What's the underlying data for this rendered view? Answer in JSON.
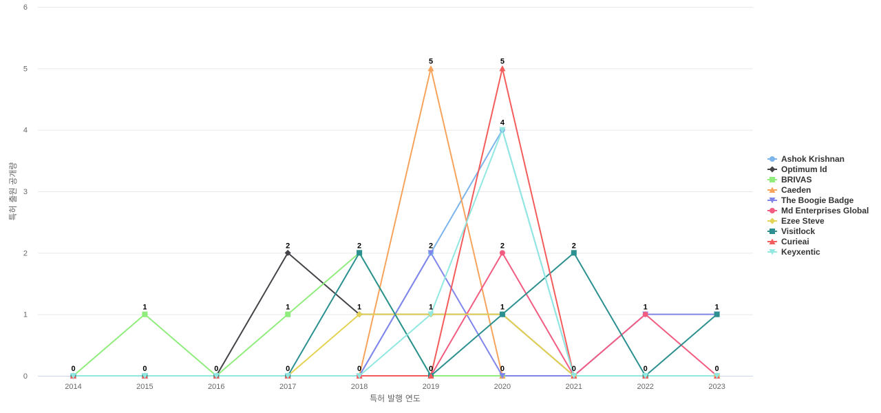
{
  "chart_data": {
    "type": "line",
    "title": "",
    "xlabel": "특허 발행 연도",
    "ylabel": "특허 출원 공개량",
    "ylim": [
      0,
      6
    ],
    "yticks": [
      0,
      1,
      2,
      3,
      4,
      5,
      6
    ],
    "grid": true,
    "legend_position": "right",
    "categories": [
      "2014",
      "2015",
      "2016",
      "2017",
      "2018",
      "2019",
      "2020",
      "2021",
      "2022",
      "2023"
    ],
    "series": [
      {
        "name": "Ashok Krishnan",
        "color": "#7cb5ec",
        "marker": "circle",
        "values": [
          0,
          0,
          0,
          0,
          0,
          2,
          4,
          0,
          0,
          0
        ]
      },
      {
        "name": "Optimum Id",
        "color": "#434348",
        "marker": "diamond",
        "values": [
          0,
          0,
          0,
          2,
          1,
          1,
          1,
          0,
          0,
          0
        ]
      },
      {
        "name": "BRIVAS",
        "color": "#90ed7d",
        "marker": "square",
        "values": [
          0,
          1,
          0,
          1,
          2,
          0,
          0,
          0,
          0,
          0
        ]
      },
      {
        "name": "Caeden",
        "color": "#f7a35c",
        "marker": "triangle",
        "values": [
          0,
          0,
          0,
          0,
          0,
          5,
          0,
          0,
          0,
          0
        ]
      },
      {
        "name": "The Boogie Badge",
        "color": "#8085e9",
        "marker": "triangle-down",
        "values": [
          0,
          0,
          0,
          0,
          0,
          2,
          0,
          0,
          1,
          1
        ]
      },
      {
        "name": "Md Enterprises Global",
        "color": "#f15c80",
        "marker": "circle",
        "values": [
          0,
          0,
          0,
          0,
          0,
          0,
          2,
          0,
          1,
          0
        ]
      },
      {
        "name": "Ezee Steve",
        "color": "#e4d354",
        "marker": "diamond",
        "values": [
          0,
          0,
          0,
          0,
          1,
          1,
          1,
          0,
          0,
          0
        ]
      },
      {
        "name": "Visitlock",
        "color": "#2b908f",
        "marker": "square",
        "values": [
          0,
          0,
          0,
          0,
          2,
          0,
          1,
          2,
          0,
          1
        ]
      },
      {
        "name": "Curieai",
        "color": "#f45b5b",
        "marker": "triangle",
        "values": [
          0,
          0,
          0,
          0,
          0,
          0,
          5,
          0,
          0,
          0
        ]
      },
      {
        "name": "Keyxentic",
        "color": "#91e8e1",
        "marker": "triangle-down",
        "values": [
          0,
          0,
          0,
          0,
          0,
          1,
          4,
          0,
          0,
          0
        ]
      }
    ],
    "data_labels": [
      {
        "category": "2014",
        "text": "0"
      },
      {
        "category": "2015",
        "text": "1"
      },
      {
        "category": "2015",
        "text": "0"
      },
      {
        "category": "2016",
        "text": "0"
      },
      {
        "category": "2017",
        "text": "2"
      },
      {
        "category": "2017",
        "text": "1"
      },
      {
        "category": "2017",
        "text": "0"
      },
      {
        "category": "2018",
        "text": "2"
      },
      {
        "category": "2018",
        "text": "1"
      },
      {
        "category": "2018",
        "text": "0"
      },
      {
        "category": "2019",
        "text": "5"
      },
      {
        "category": "2019",
        "text": "2"
      },
      {
        "category": "2019",
        "text": "1"
      },
      {
        "category": "2019",
        "text": "0"
      },
      {
        "category": "2020",
        "text": "5"
      },
      {
        "category": "2020",
        "text": "4"
      },
      {
        "category": "2020",
        "text": "2"
      },
      {
        "category": "2020",
        "text": "1"
      },
      {
        "category": "2020",
        "text": "0"
      },
      {
        "category": "2021",
        "text": "2"
      },
      {
        "category": "2021",
        "text": "0"
      },
      {
        "category": "2022",
        "text": "1"
      },
      {
        "category": "2022",
        "text": "0"
      },
      {
        "category": "2023",
        "text": "1"
      },
      {
        "category": "2023",
        "text": "0"
      }
    ]
  }
}
